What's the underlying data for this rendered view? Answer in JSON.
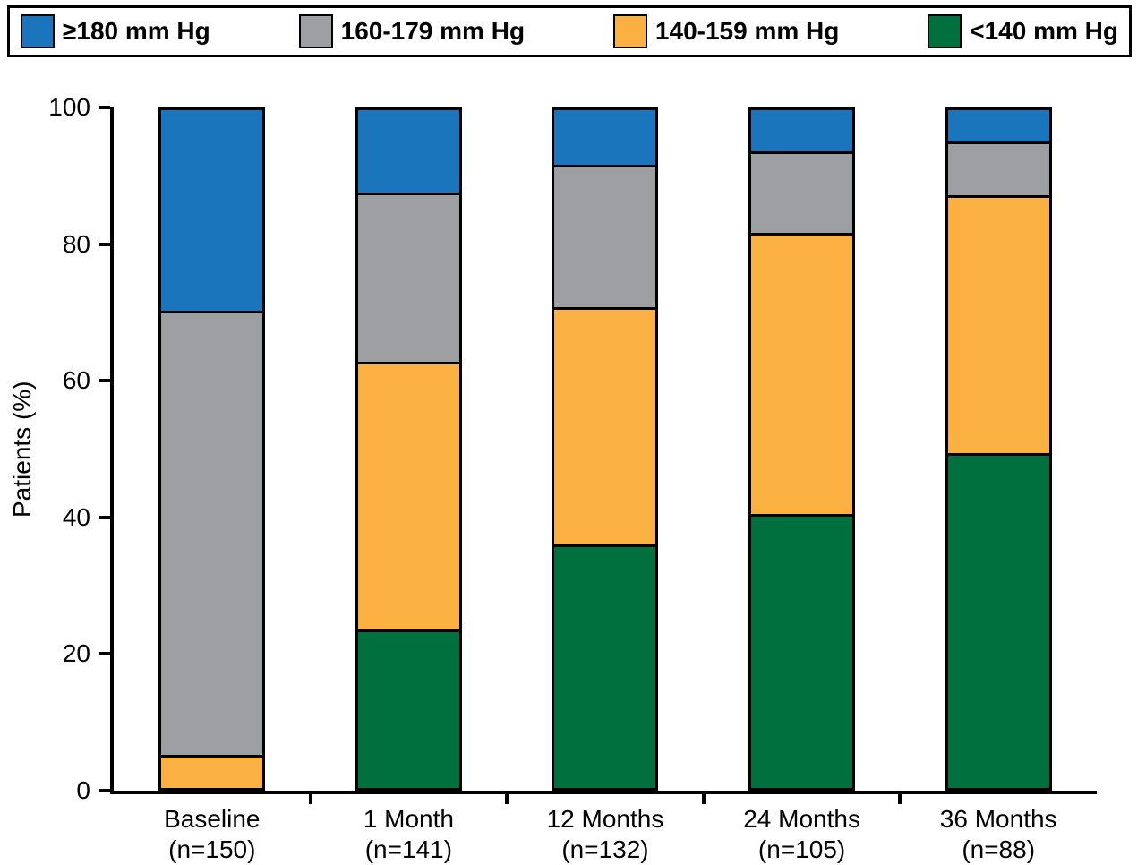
{
  "chart_data": {
    "type": "bar",
    "subtype": "stacked_percentage",
    "title": "",
    "xlabel": "",
    "ylabel": "Patients (%)",
    "ylim": [
      0,
      100
    ],
    "yticks": [
      0,
      20,
      40,
      60,
      80,
      100
    ],
    "grid": false,
    "legend_position": "top",
    "stack_order": "bottom_to_top",
    "categories": [
      {
        "label": "Baseline",
        "n": "(n=150)"
      },
      {
        "label": "1 Month",
        "n": "(n=141)"
      },
      {
        "label": "12 Months",
        "n": "(n=132)"
      },
      {
        "label": "24 Months",
        "n": "(n=105)"
      },
      {
        "label": "36 Months",
        "n": "(n=88)"
      }
    ],
    "series": [
      {
        "name": "<140 mm Hg",
        "color": "#00703F",
        "values": [
          0,
          23,
          35.5,
          40,
          49
        ]
      },
      {
        "name": "140-159 mm Hg",
        "color": "#FBB042",
        "values": [
          4.5,
          39.5,
          35,
          41.5,
          38
        ]
      },
      {
        "name": "160-179 mm Hg",
        "color": "#9D9FA2",
        "values": [
          65.5,
          25,
          21,
          12,
          8
        ]
      },
      {
        "name": "≥180 mm Hg",
        "color": "#1B75BC",
        "values": [
          30,
          12.5,
          8.5,
          6.5,
          5
        ]
      }
    ],
    "legend": [
      {
        "label": "≥180 mm Hg",
        "color": "#1B75BC"
      },
      {
        "label": "160-179 mm Hg",
        "color": "#9D9FA2"
      },
      {
        "label": "140-159 mm Hg",
        "color": "#FBB042"
      },
      {
        "label": "<140 mm Hg",
        "color": "#00703F"
      }
    ],
    "axis_color": "#000000",
    "background_color": "#ffffff"
  }
}
